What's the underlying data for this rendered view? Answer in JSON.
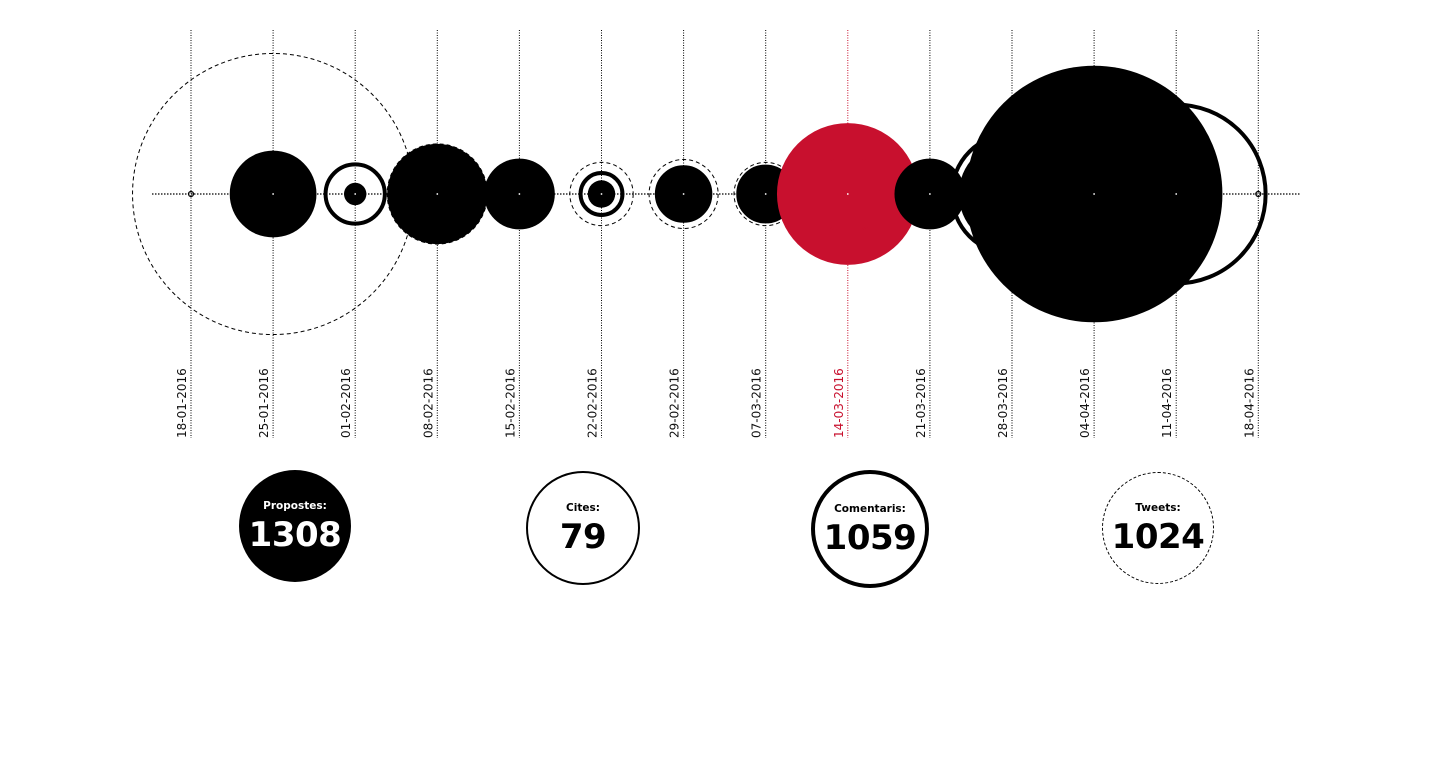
{
  "chart_data": {
    "type": "scatter",
    "encoding": "concentric circles per week on a timeline; filled circle = propostes, thin circle = cites, thick circle = comentaris, dashed circle = tweets",
    "highlighted_week": "14-03-2016",
    "highlight_color": "#c8102e",
    "weeks": [
      {
        "date": "18-01-2016",
        "propostes": 0,
        "cites": 0,
        "comentaris": 0,
        "tweets": 0
      },
      {
        "date": "25-01-2016",
        "propostes": 60,
        "cites": 0,
        "comentaris": 0,
        "tweets": 630
      },
      {
        "date": "01-02-2016",
        "propostes": 4,
        "cites": 1,
        "comentaris": 28,
        "tweets": 0
      },
      {
        "date": "08-02-2016",
        "propostes": 80,
        "cites": 3,
        "comentaris": 0,
        "tweets": 80
      },
      {
        "date": "15-02-2016",
        "propostes": 40,
        "cites": 5,
        "comentaris": 0,
        "tweets": 25
      },
      {
        "date": "22-02-2016",
        "propostes": 6,
        "cites": 5,
        "comentaris": 14,
        "tweets": 32
      },
      {
        "date": "29-02-2016",
        "propostes": 25,
        "cites": 25,
        "comentaris": 18,
        "tweets": 38
      },
      {
        "date": "07-03-2016",
        "propostes": 25,
        "cites": 20,
        "comentaris": 24,
        "tweets": 32
      },
      {
        "date": "14-03-2016",
        "propostes": 160,
        "cites": 46,
        "comentaris": 0,
        "tweets": 45
      },
      {
        "date": "21-03-2016",
        "propostes": 40,
        "cites": 5,
        "comentaris": 0,
        "tweets": 0
      },
      {
        "date": "28-03-2016",
        "propostes": 90,
        "cites": 47,
        "comentaris": 115,
        "tweets": 70
      },
      {
        "date": "04-04-2016",
        "propostes": 525,
        "cites": 0,
        "comentaris": 215,
        "tweets": 70
      },
      {
        "date": "11-04-2016",
        "propostes": 0,
        "cites": 0,
        "comentaris": 255,
        "tweets": 0
      },
      {
        "date": "18-04-2016",
        "propostes": 0,
        "cites": 0,
        "comentaris": 0,
        "tweets": 0
      }
    ]
  },
  "summary": {
    "propostes": {
      "label": "Propostes:",
      "value": "1308"
    },
    "cites": {
      "label": "Cites:",
      "value": "79"
    },
    "comentaris": {
      "label": "Comentaris:",
      "value": "1059"
    },
    "tweets": {
      "label": "Tweets:",
      "value": "1024"
    }
  }
}
